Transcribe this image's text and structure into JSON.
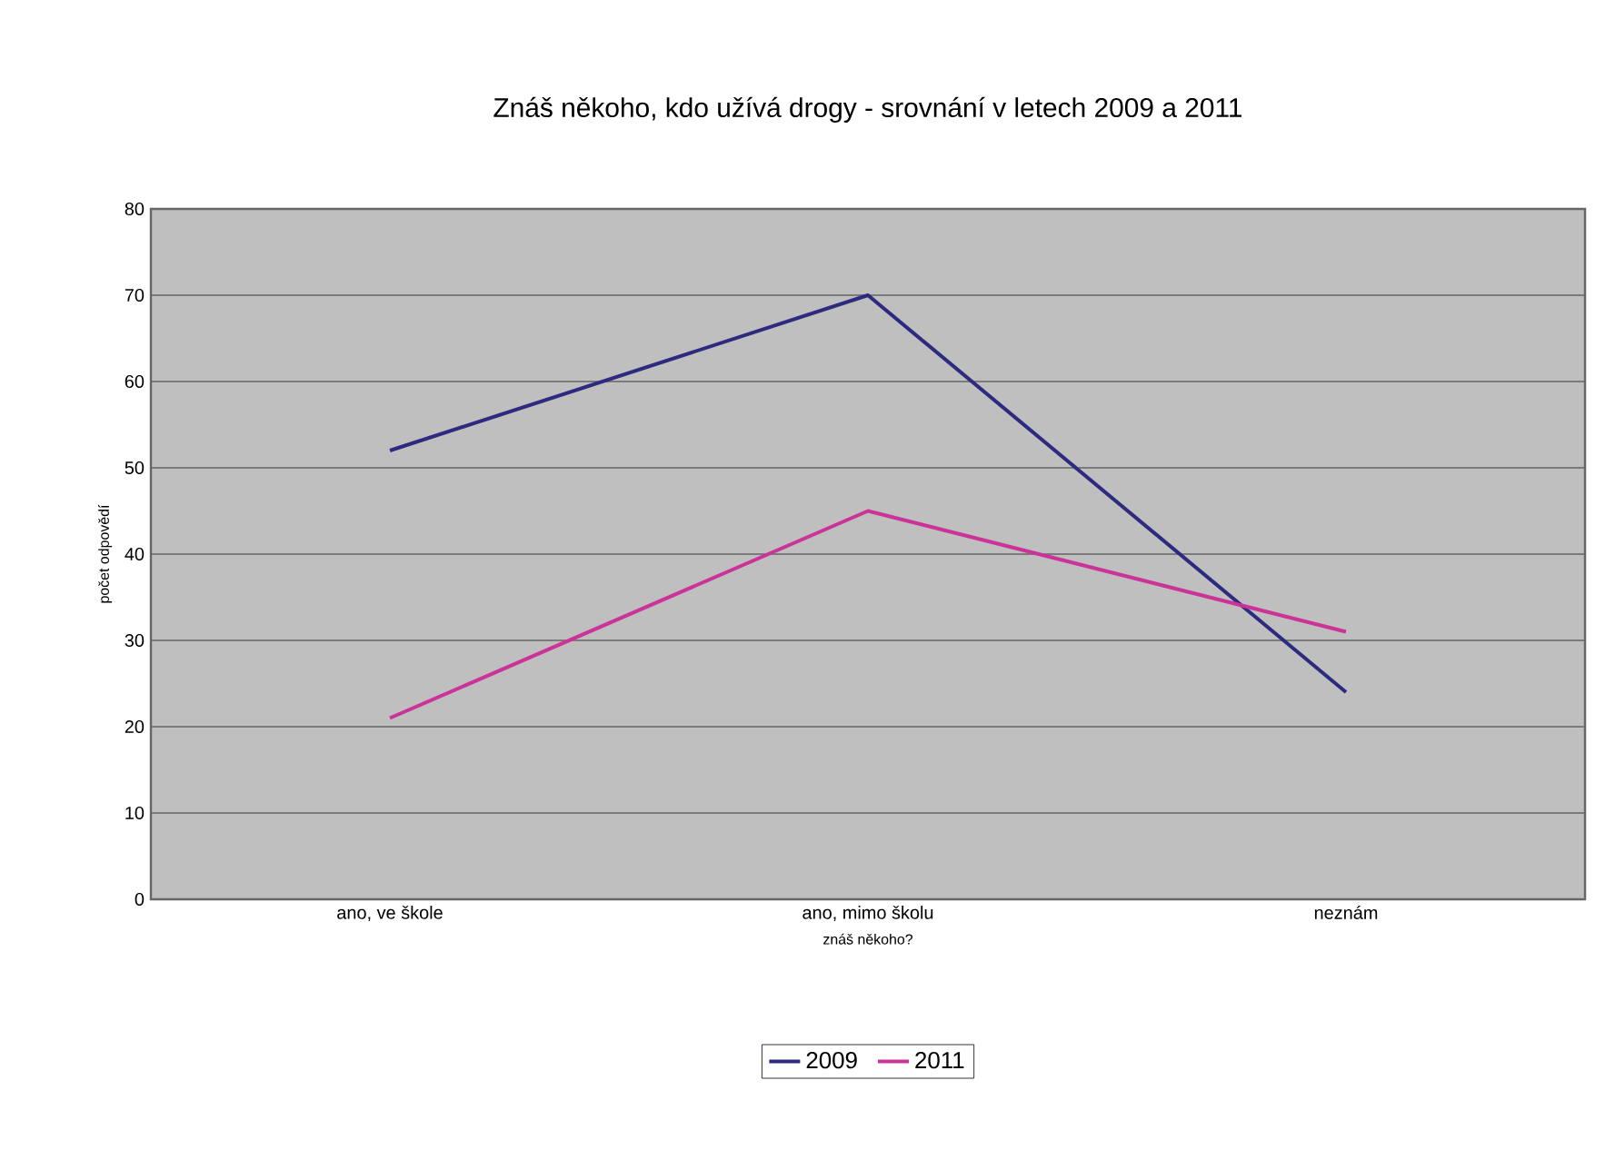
{
  "chart_data": {
    "type": "line",
    "title": "Znáš někoho, kdo užívá drogy - srovnání v letech 2009 a 2011",
    "xlabel": "znáš někoho?",
    "ylabel": "počet odpovědí",
    "categories": [
      "ano, ve škole",
      "ano, mimo školu",
      "neznám"
    ],
    "series": [
      {
        "name": "2009",
        "color": "#2e2a7f",
        "values": [
          52,
          70,
          24
        ]
      },
      {
        "name": "2011",
        "color": "#cc3399",
        "values": [
          21,
          45,
          31
        ]
      }
    ],
    "ylim": [
      0,
      80
    ],
    "yticks": [
      0,
      10,
      20,
      30,
      40,
      50,
      60,
      70,
      80
    ],
    "grid": "y",
    "legend": "bottom",
    "marker": "none",
    "line_style": "solid"
  }
}
